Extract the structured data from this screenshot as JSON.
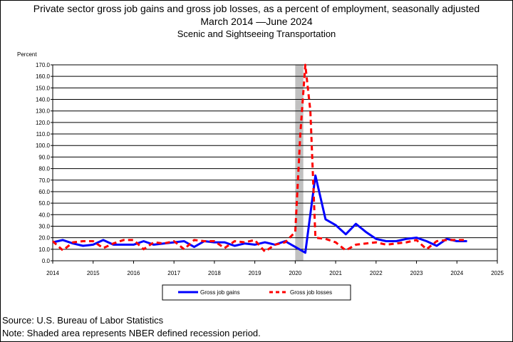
{
  "chart_data": {
    "type": "line",
    "title": "Private sector gross job gains and gross job losses, as a percent of employment, seasonally adjusted",
    "subtitle": "March 2014 —June 2024",
    "subtitle2": "Scenic and Sightseeing Transportation",
    "ylabel": "Percent",
    "ylim": [
      0,
      170
    ],
    "yticks": [
      "0.0",
      "10.0",
      "20.0",
      "30.0",
      "40.0",
      "50.0",
      "60.0",
      "70.0",
      "80.0",
      "90.0",
      "100.0",
      "110.0",
      "120.0",
      "130.0",
      "140.0",
      "150.0",
      "160.0",
      "170.0"
    ],
    "xlim": [
      2014,
      2025
    ],
    "xticks": [
      "2014",
      "2015",
      "2016",
      "2017",
      "2018",
      "2019",
      "2020",
      "2021",
      "2022",
      "2023",
      "2024",
      "2025"
    ],
    "grid": true,
    "legend_position": "bottom",
    "recession_band": [
      2020.0,
      2020.2
    ],
    "series": [
      {
        "name": "Gross job gains",
        "color": "#0000ff",
        "style": "solid",
        "x": [
          2014.0,
          2014.25,
          2014.5,
          2014.75,
          2015.0,
          2015.25,
          2015.5,
          2015.75,
          2016.0,
          2016.25,
          2016.5,
          2016.75,
          2017.0,
          2017.25,
          2017.5,
          2017.75,
          2018.0,
          2018.25,
          2018.5,
          2018.75,
          2019.0,
          2019.25,
          2019.5,
          2019.75,
          2020.0,
          2020.25,
          2020.5,
          2020.75,
          2021.0,
          2021.25,
          2021.5,
          2021.75,
          2022.0,
          2022.25,
          2022.5,
          2022.75,
          2023.0,
          2023.25,
          2023.5,
          2023.75,
          2024.0,
          2024.25
        ],
        "values": [
          16,
          18,
          15,
          13,
          14,
          18,
          14,
          14,
          14,
          17,
          14,
          15,
          16,
          17,
          12,
          17,
          16,
          16,
          13,
          15,
          14,
          16,
          14,
          17,
          12,
          7,
          74,
          36,
          31,
          23,
          32,
          25,
          19,
          17,
          17,
          19,
          20,
          17,
          13,
          19,
          17,
          17
        ]
      },
      {
        "name": "Gross job losses",
        "color": "#ff0000",
        "style": "dashed",
        "x": [
          2014.0,
          2014.25,
          2014.5,
          2014.75,
          2015.0,
          2015.25,
          2015.5,
          2015.75,
          2016.0,
          2016.25,
          2016.5,
          2016.75,
          2017.0,
          2017.25,
          2017.5,
          2017.75,
          2018.0,
          2018.25,
          2018.5,
          2018.75,
          2019.0,
          2019.25,
          2019.5,
          2019.75,
          2020.0,
          2020.125,
          2020.25,
          2020.375,
          2020.5,
          2020.75,
          2021.0,
          2021.25,
          2021.5,
          2021.75,
          2022.0,
          2022.25,
          2022.5,
          2022.75,
          2023.0,
          2023.25,
          2023.5,
          2023.75,
          2024.0,
          2024.25
        ],
        "values": [
          17,
          9,
          16,
          17,
          17,
          11,
          15,
          18,
          18,
          10,
          16,
          15,
          17,
          10,
          18,
          17,
          17,
          11,
          17,
          16,
          18,
          8,
          14,
          16,
          25,
          110,
          170,
          130,
          20,
          19,
          16,
          9,
          14,
          15,
          16,
          14,
          15,
          16,
          18,
          10,
          17,
          18,
          18,
          18
        ]
      }
    ]
  },
  "footer": {
    "source": "Source: U.S. Bureau of Labor Statistics",
    "note": "Note: Shaded area represents NBER defined recession period."
  }
}
